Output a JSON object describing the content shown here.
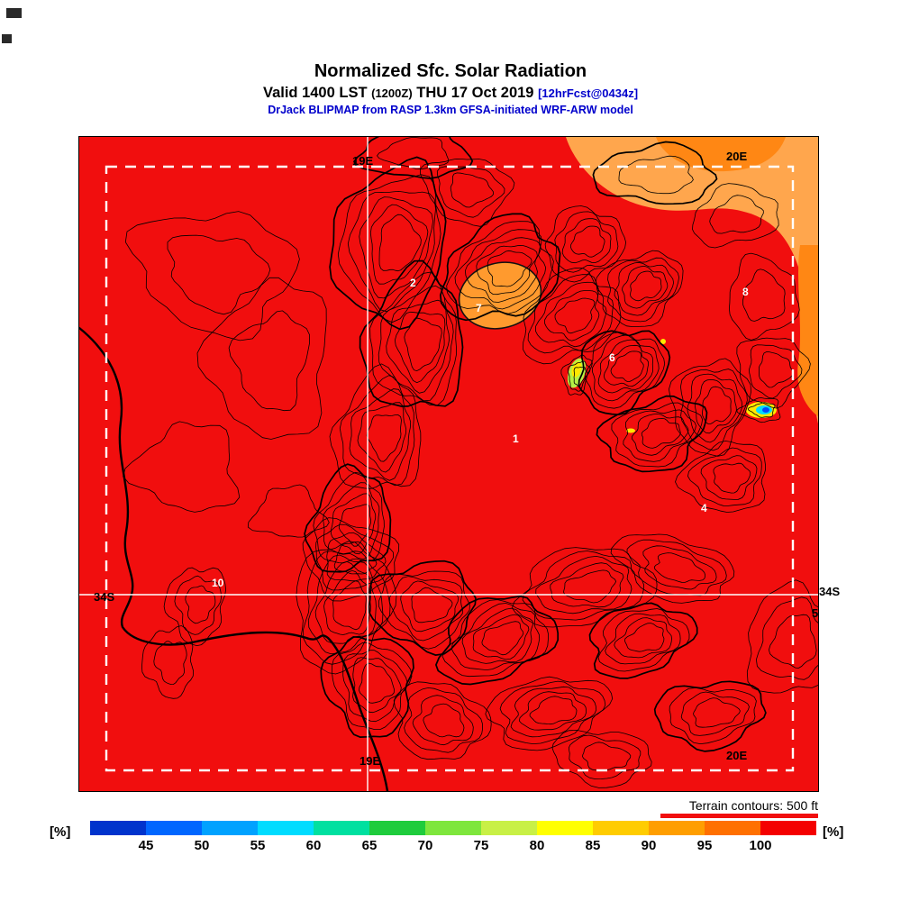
{
  "header": {
    "title": "Normalized Sfc. Solar Radiation",
    "valid_line": {
      "prefix": "Valid 1400 LST",
      "zulu": "(1200Z)",
      "date": "THU 17 Oct 2019",
      "fcst": "[12hrFcst@0434z]"
    },
    "model_line": "DrJack BLIPMAP from RASP 1.3km GFSA-initiated WRF-ARW model"
  },
  "map": {
    "coordinate_labels": {
      "meridian_19e_top": "19E",
      "meridian_19e_bottom": "19E",
      "meridian_20e_top": "20E",
      "meridian_20e_bottom": "20E",
      "parallel_34s_left": "34S",
      "parallel_34s_right": "34S",
      "site_5": "5"
    },
    "site_numbers": {
      "s1": "1",
      "s2": "2",
      "s4": "4",
      "s6": "6",
      "s7": "7",
      "s8": "8",
      "s10": "10"
    }
  },
  "footer": {
    "terrain_note": "Terrain contours: 500 ft"
  },
  "colorbar": {
    "unit_left": "[%]",
    "unit_right": "[%]",
    "ticks": [
      "45",
      "50",
      "55",
      "60",
      "65",
      "70",
      "75",
      "80",
      "85",
      "90",
      "95",
      "100"
    ],
    "colors": [
      "#0033cc",
      "#0066ff",
      "#00a2ff",
      "#00dcff",
      "#00e0a0",
      "#1ecc3c",
      "#7ee63c",
      "#c8f046",
      "#ffff00",
      "#ffcc00",
      "#ff9e00",
      "#ff7000",
      "#f40000"
    ]
  },
  "chart_data": {
    "type": "heatmap",
    "title": "Normalized Sfc. Solar Radiation",
    "valid": "1400 LST (1200Z) THU 17 Oct 2019",
    "forecast_run": "12hrFcst@0434z",
    "model": "DrJack BLIPMAP from RASP 1.3km GFSA-initiated WRF-ARW model",
    "units": "%",
    "scale_ticks": [
      45,
      50,
      55,
      60,
      65,
      70,
      75,
      80,
      85,
      90,
      95,
      100
    ],
    "scale_colors": [
      "#0033cc",
      "#0066ff",
      "#00a2ff",
      "#00dcff",
      "#00e0a0",
      "#1ecc3c",
      "#7ee63c",
      "#c8f046",
      "#ffff00",
      "#ffcc00",
      "#ff9e00",
      "#ff7000",
      "#f40000"
    ],
    "dominant_band": "95-100 (red over most of domain)",
    "secondary_bands": "85-95 (orange, upper-right corner and right edge); small 45-80 spots mid-right",
    "geography": {
      "meridians": [
        "19E",
        "20E"
      ],
      "parallels": [
        "34S"
      ],
      "terrain_contour_interval_ft": 500,
      "inner_domain": "white dashed rectangle",
      "coastline": "Western Cape coast, lower left"
    },
    "terrain_clusters": [
      [
        345,
        118,
        62,
        88,
        0.2,
        6,
        0.18,
        1,
        1
      ],
      [
        372,
        228,
        55,
        78,
        0.1,
        6,
        0.2,
        2,
        1
      ],
      [
        332,
        330,
        48,
        66,
        0.15,
        5,
        0.22,
        3,
        0
      ],
      [
        300,
        428,
        44,
        58,
        0.3,
        5,
        0.2,
        4,
        1
      ],
      [
        292,
        520,
        52,
        72,
        0.2,
        6,
        0.18,
        5,
        0
      ],
      [
        322,
        608,
        48,
        56,
        -0.2,
        5,
        0.2,
        6,
        1
      ],
      [
        468,
        148,
        68,
        52,
        -0.5,
        6,
        0.2,
        7,
        1
      ],
      [
        545,
        200,
        58,
        44,
        -0.6,
        5,
        0.22,
        8,
        0
      ],
      [
        602,
        258,
        52,
        42,
        -0.6,
        6,
        0.2,
        9,
        1
      ],
      [
        560,
        118,
        44,
        38,
        -0.4,
        4,
        0.2,
        10,
        0
      ],
      [
        622,
        168,
        48,
        38,
        -0.5,
        5,
        0.2,
        11,
        0
      ],
      [
        638,
        330,
        58,
        38,
        -0.3,
        5,
        0.22,
        12,
        1
      ],
      [
        700,
        298,
        42,
        52,
        0.2,
        5,
        0.2,
        13,
        0
      ],
      [
        718,
        378,
        48,
        38,
        -0.2,
        4,
        0.2,
        14,
        0
      ],
      [
        150,
        148,
        88,
        66,
        0.2,
        2,
        0.25,
        15,
        0
      ],
      [
        212,
        248,
        66,
        86,
        0.1,
        2,
        0.25,
        16,
        0
      ],
      [
        120,
        368,
        56,
        48,
        0,
        1,
        0.3,
        17,
        0
      ],
      [
        232,
        418,
        38,
        28,
        0,
        1,
        0.3,
        18,
        0
      ],
      [
        300,
        468,
        52,
        42,
        0.2,
        4,
        0.2,
        19,
        0
      ],
      [
        382,
        520,
        58,
        48,
        0.1,
        5,
        0.2,
        20,
        1
      ],
      [
        462,
        558,
        66,
        44,
        -0.4,
        6,
        0.2,
        21,
        1
      ],
      [
        560,
        500,
        76,
        42,
        -0.2,
        5,
        0.2,
        22,
        0
      ],
      [
        622,
        558,
        58,
        38,
        -0.3,
        5,
        0.2,
        23,
        1
      ],
      [
        520,
        638,
        66,
        38,
        -0.2,
        5,
        0.2,
        24,
        0
      ],
      [
        400,
        648,
        52,
        42,
        0.3,
        4,
        0.2,
        25,
        0
      ],
      [
        660,
        478,
        66,
        34,
        0.3,
        4,
        0.2,
        26,
        0
      ],
      [
        130,
        518,
        32,
        42,
        0.1,
        3,
        0.22,
        27,
        0
      ],
      [
        100,
        582,
        28,
        38,
        0,
        2,
        0.22,
        28,
        0
      ],
      [
        640,
        42,
        66,
        32,
        0,
        2,
        0.2,
        29,
        1
      ],
      [
        728,
        88,
        48,
        32,
        -0.2,
        2,
        0.2,
        30,
        0
      ],
      [
        758,
        178,
        38,
        44,
        0,
        2,
        0.2,
        31,
        0
      ],
      [
        768,
        258,
        38,
        38,
        0,
        3,
        0.2,
        32,
        0
      ],
      [
        430,
        58,
        48,
        36,
        0.2,
        3,
        0.2,
        33,
        0
      ],
      [
        372,
        18,
        60,
        28,
        0,
        2,
        0.2,
        36,
        1
      ],
      [
        552,
        264,
        14,
        22,
        0.3,
        3,
        0.28,
        34,
        0
      ],
      [
        757,
        303,
        22,
        13,
        0,
        2,
        0.25,
        35,
        0
      ],
      [
        790,
        560,
        50,
        60,
        0.2,
        3,
        0.2,
        37,
        0
      ],
      [
        700,
        640,
        60,
        36,
        -0.1,
        4,
        0.2,
        38,
        1
      ],
      [
        580,
        688,
        54,
        30,
        0.1,
        3,
        0.2,
        39,
        0
      ]
    ]
  }
}
